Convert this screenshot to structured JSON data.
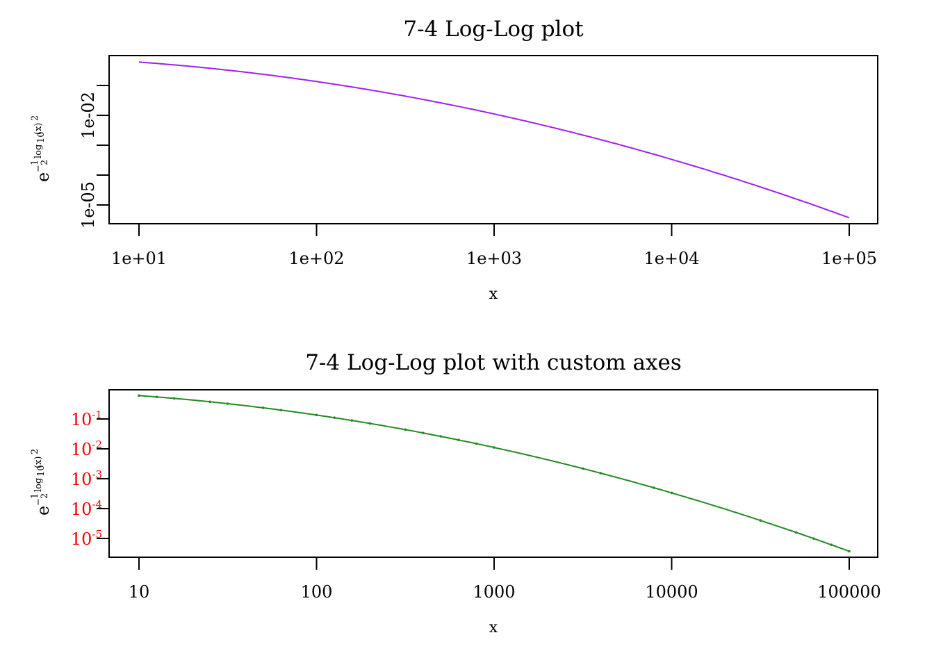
{
  "chart_data": [
    {
      "type": "line",
      "title": "7-4 Log-Log plot",
      "xlabel": "x",
      "ylabel": "e^{-1/2 log10(x)^2}",
      "x_scale": "log",
      "y_scale": "log",
      "xlim": [
        10,
        100000
      ],
      "x_ticks": [
        10,
        100,
        1000,
        10000,
        100000
      ],
      "x_tick_labels": [
        "1e+01",
        "1e+02",
        "1e+03",
        "1e+04",
        "1e+05"
      ],
      "y_ticks": [
        0.1,
        0.01,
        0.001,
        0.0001,
        1e-05
      ],
      "y_tick_labels": [
        "",
        "1e-02",
        "",
        "",
        "1e-05"
      ],
      "series": [
        {
          "color": "#A020F0",
          "x": [
            10,
            100,
            1000,
            10000,
            100000
          ],
          "y": [
            0.6065,
            0.1353,
            0.0111,
            0.000335,
            3.7e-06
          ]
        }
      ]
    },
    {
      "type": "line",
      "title": "7-4 Log-Log plot with custom axes",
      "xlabel": "x",
      "ylabel": "e^{-1/2 log10(x)^2}",
      "x_scale": "log",
      "y_scale": "log",
      "xlim": [
        10,
        100000
      ],
      "x_ticks": [
        10,
        100,
        1000,
        10000,
        100000
      ],
      "x_tick_labels": [
        "10",
        "100",
        "1000",
        "10000",
        "100000"
      ],
      "y_ticks": [
        0.1,
        0.01,
        0.001,
        0.0001,
        1e-05
      ],
      "y_tick_labels": [
        {
          "base": "10",
          "exp": "-1"
        },
        {
          "base": "10",
          "exp": "-2"
        },
        {
          "base": "10",
          "exp": "-3"
        },
        {
          "base": "10",
          "exp": "-4"
        },
        {
          "base": "10",
          "exp": "-5"
        }
      ],
      "y_tick_label_color": "#FF0000",
      "markers": "points",
      "series": [
        {
          "color": "#228B22",
          "x": [
            10,
            12.6,
            15.8,
            25.1,
            31.6,
            50.1,
            63.1,
            100,
            126,
            158,
            200,
            316,
            398,
            501,
            631,
            794,
            1000,
            3162,
            3981,
            7943,
            10000,
            31623,
            50119,
            63096,
            79433,
            100000
          ],
          "y": [
            0.6065,
            0.5497,
            0.4919,
            0.3803,
            0.3247,
            0.2292,
            0.1873,
            0.1353,
            0.1055,
            0.0809,
            0.0608,
            0.0325,
            0.0233,
            0.0163,
            0.0112,
            0.0076,
            0.0111,
            0.00219,
            0.00159,
            0.000488,
            0.000335,
            3.99e-05,
            1.72e-05,
            1.07e-05,
            6.3e-06,
            3.7e-06
          ]
        }
      ]
    }
  ]
}
